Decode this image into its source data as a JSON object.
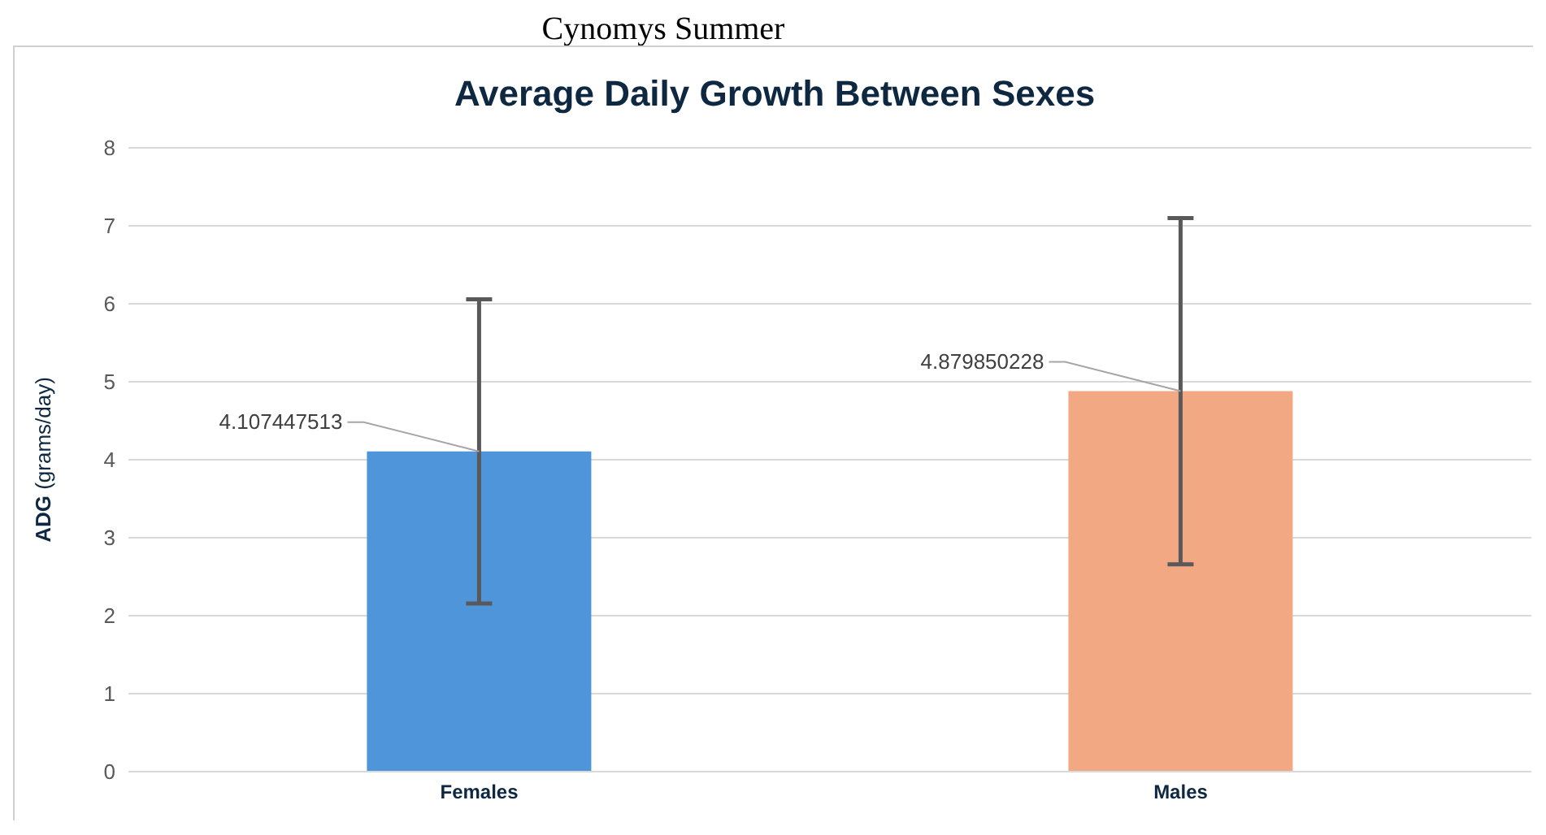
{
  "chart_data": {
    "type": "bar",
    "subtitle": "Cynomys Summer",
    "title": "Average Daily Growth Between Sexes",
    "ylabel": "ADG (grams/day)",
    "categories": [
      "Females",
      "Males"
    ],
    "values": [
      4.107447513,
      4.879850228
    ],
    "colors": [
      "#4f95da",
      "#f2a983"
    ],
    "errors": [
      1.95,
      2.22
    ],
    "data_labels": true,
    "ylim": [
      0,
      8
    ],
    "yticks": [
      0,
      1,
      2,
      3,
      4,
      5,
      6,
      7,
      8
    ],
    "grid": "y",
    "legend": false
  }
}
